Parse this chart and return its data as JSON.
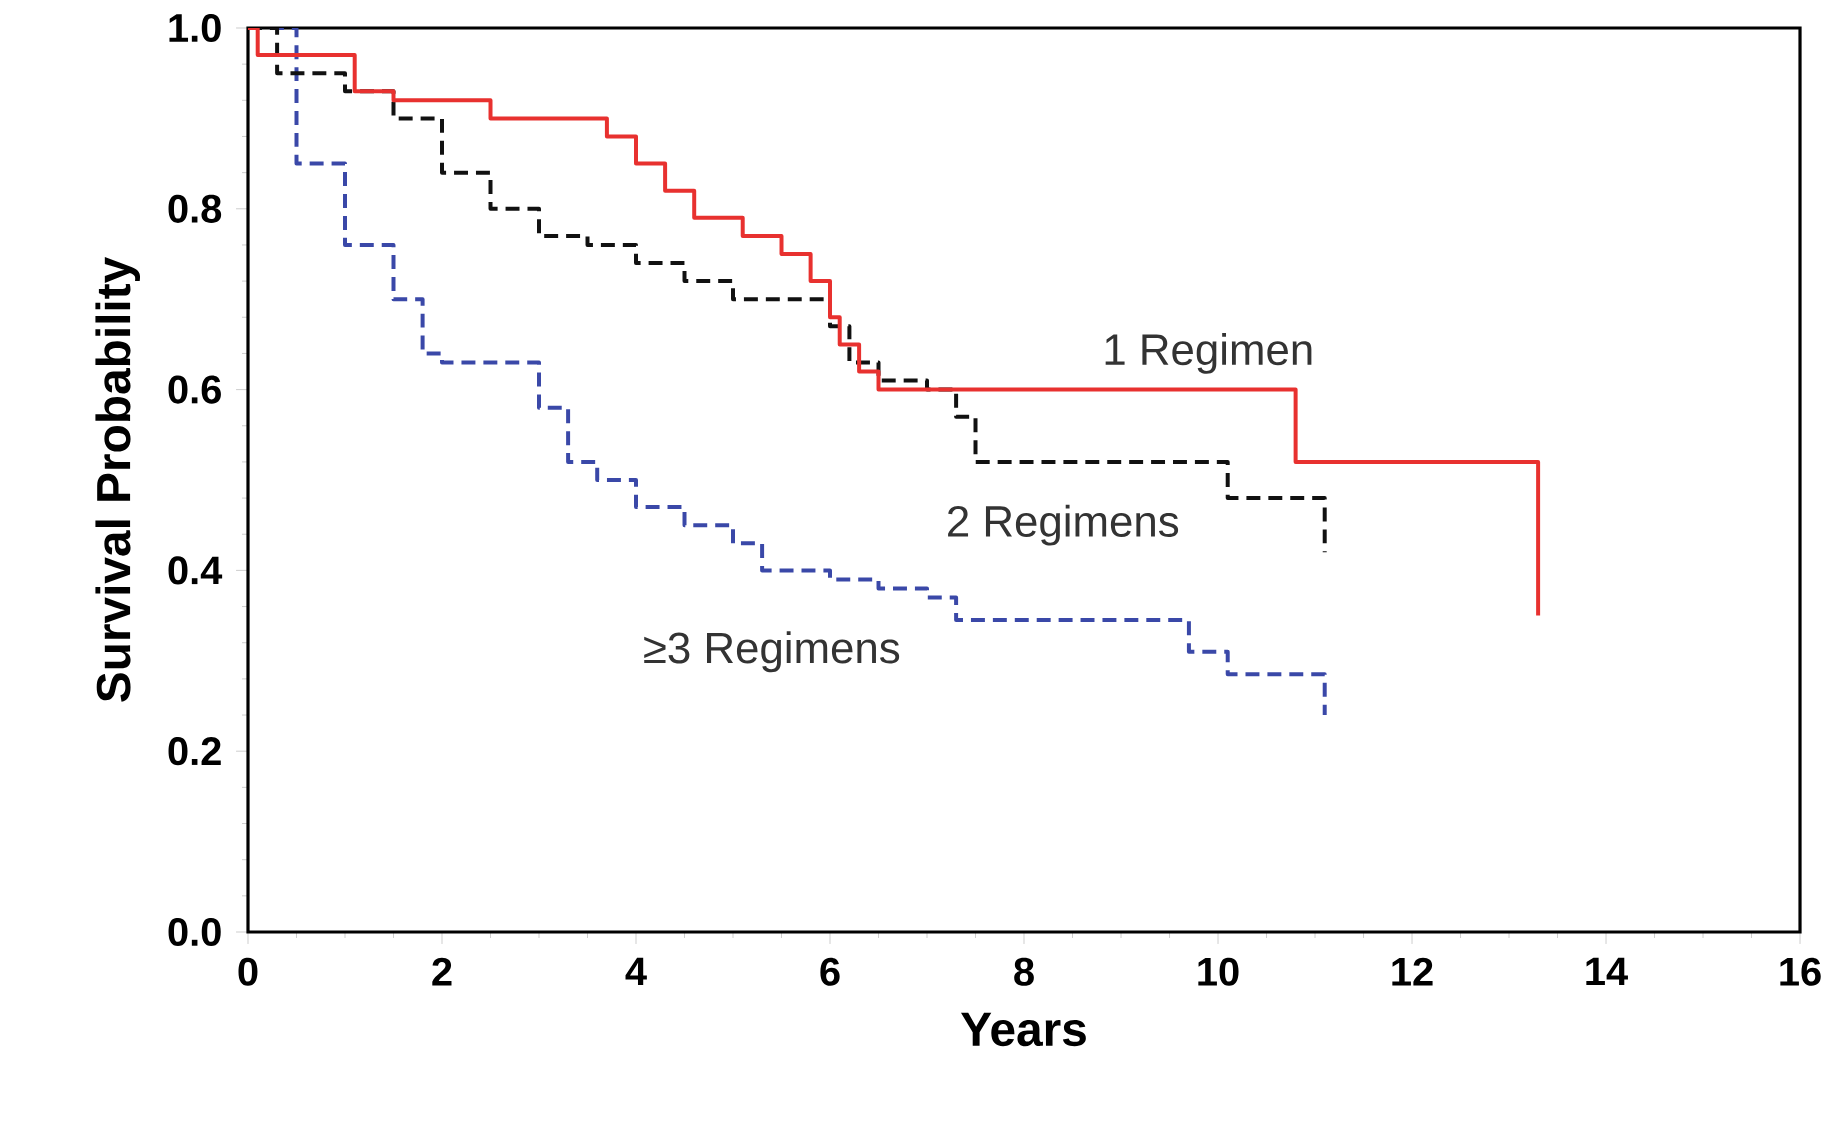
{
  "chart_data": {
    "type": "step",
    "xlabel": "Years",
    "ylabel": "Survival Probability",
    "xlim": [
      0,
      16
    ],
    "ylim": [
      0,
      1.0
    ],
    "xticks": [
      0,
      2,
      4,
      6,
      8,
      10,
      12,
      14,
      16
    ],
    "yticks": [
      {
        "value": 0,
        "label": "0.0"
      },
      {
        "value": 0.2,
        "label": "0.2"
      },
      {
        "value": 0.4,
        "label": "0.4"
      },
      {
        "value": 0.6,
        "label": "0.6"
      },
      {
        "value": 0.8,
        "label": "0.8"
      },
      {
        "value": 1.0,
        "label": "1.0"
      }
    ],
    "grid": false,
    "series": [
      {
        "name": "1 Regimen",
        "color": "#e8312f",
        "line_style": "solid",
        "x": [
          0,
          0.1,
          1.1,
          1.5,
          2.5,
          3.7,
          4.0,
          4.3,
          4.6,
          5.1,
          5.5,
          5.8,
          6.0,
          6.1,
          6.3,
          6.5,
          10.8,
          13.3
        ],
        "values": [
          1.0,
          0.97,
          0.93,
          0.92,
          0.9,
          0.88,
          0.85,
          0.82,
          0.79,
          0.77,
          0.75,
          0.72,
          0.68,
          0.65,
          0.62,
          0.6,
          0.52,
          0.35
        ]
      },
      {
        "name": "2 Regimens",
        "color": "#111111",
        "line_style": "dashed",
        "x": [
          0,
          0.3,
          1.0,
          1.5,
          2.0,
          2.5,
          3.0,
          3.5,
          4.0,
          4.5,
          5.0,
          6.0,
          6.2,
          6.5,
          7.0,
          7.3,
          7.5,
          10.1,
          11.1
        ],
        "values": [
          1.0,
          0.95,
          0.93,
          0.9,
          0.84,
          0.8,
          0.77,
          0.76,
          0.74,
          0.72,
          0.7,
          0.67,
          0.63,
          0.61,
          0.6,
          0.57,
          0.52,
          0.48,
          0.42
        ]
      },
      {
        "name": "≥3 Regimens",
        "color": "#3a48a8",
        "line_style": "dashed",
        "x": [
          0,
          0.5,
          1.0,
          1.5,
          1.8,
          2.0,
          2.9,
          3.0,
          3.3,
          3.6,
          4.0,
          4.5,
          5.0,
          5.3,
          6.0,
          6.5,
          7.0,
          7.3,
          9.7,
          10.1,
          11.1
        ],
        "values": [
          1.0,
          0.85,
          0.76,
          0.7,
          0.64,
          0.63,
          0.63,
          0.58,
          0.52,
          0.5,
          0.47,
          0.45,
          0.43,
          0.4,
          0.39,
          0.38,
          0.37,
          0.345,
          0.31,
          0.285,
          0.24
        ]
      }
    ]
  }
}
